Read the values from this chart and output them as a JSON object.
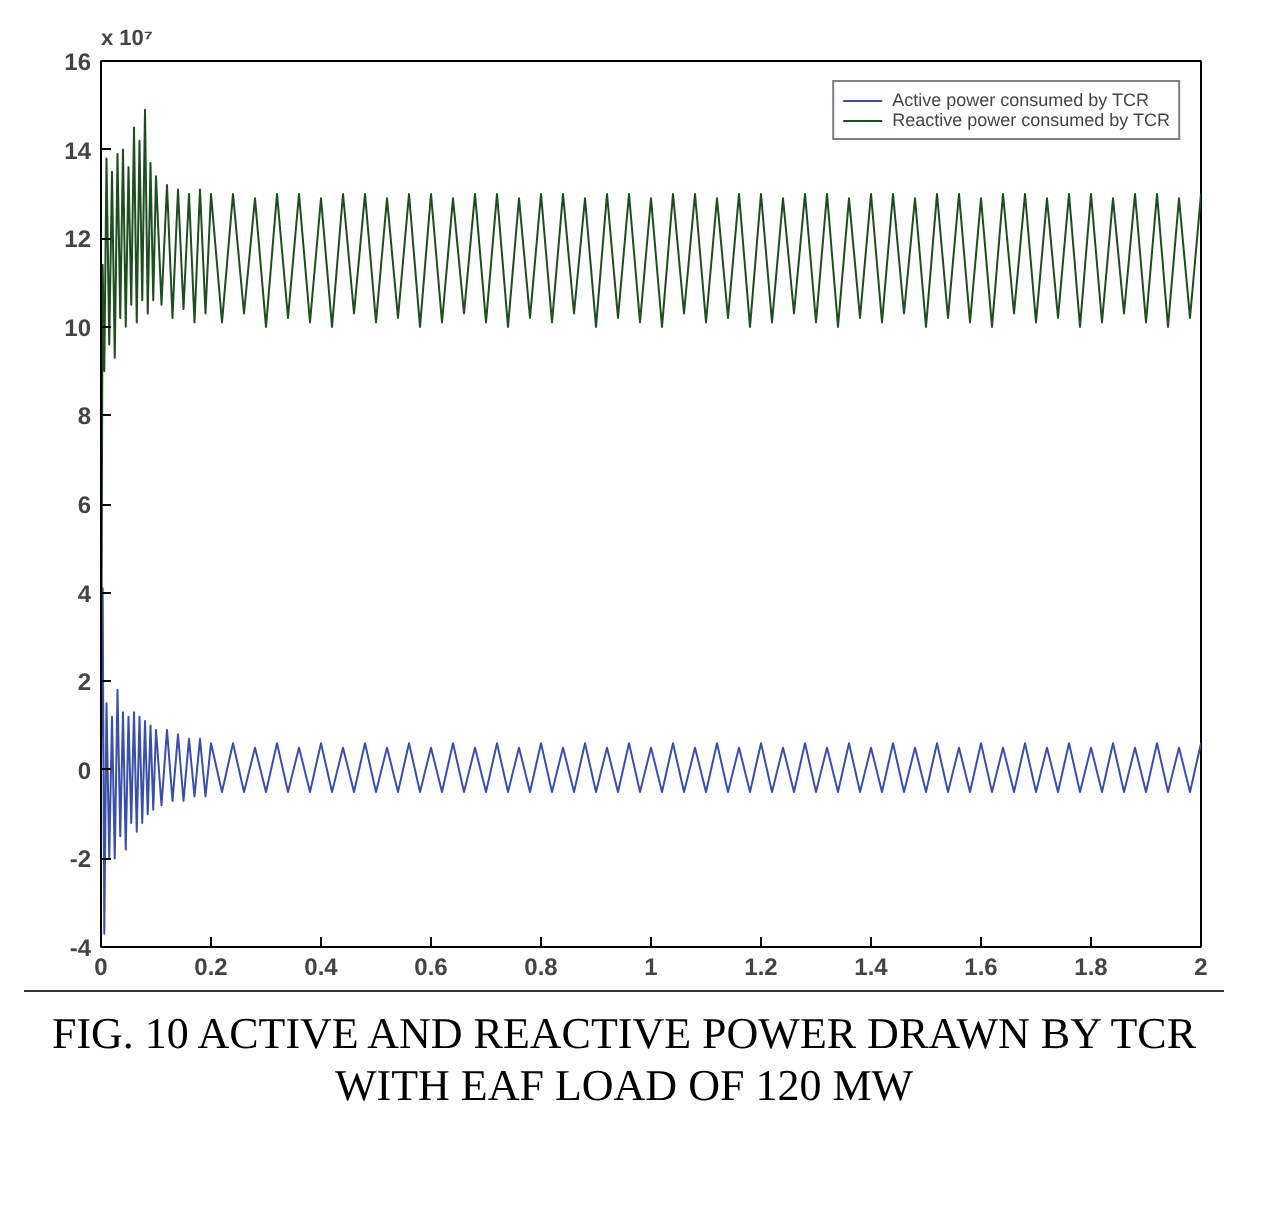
{
  "chart_data": {
    "type": "line",
    "x": [
      0,
      0.003,
      0.006,
      0.01,
      0.015,
      0.02,
      0.025,
      0.03,
      0.035,
      0.04,
      0.045,
      0.05,
      0.055,
      0.06,
      0.065,
      0.07,
      0.075,
      0.08,
      0.085,
      0.09,
      0.095,
      0.1,
      0.11,
      0.12,
      0.13,
      0.14,
      0.15,
      0.16,
      0.17,
      0.18,
      0.19,
      0.2,
      0.22,
      0.24,
      0.26,
      0.28,
      0.3,
      0.32,
      0.34,
      0.36,
      0.38,
      0.4,
      0.42,
      0.44,
      0.46,
      0.48,
      0.5,
      0.52,
      0.54,
      0.56,
      0.58,
      0.6,
      0.62,
      0.64,
      0.66,
      0.68,
      0.7,
      0.72,
      0.74,
      0.76,
      0.78,
      0.8,
      0.82,
      0.84,
      0.86,
      0.88,
      0.9,
      0.92,
      0.94,
      0.96,
      0.98,
      1.0,
      1.02,
      1.04,
      1.06,
      1.08,
      1.1,
      1.12,
      1.14,
      1.16,
      1.18,
      1.2,
      1.22,
      1.24,
      1.26,
      1.28,
      1.3,
      1.32,
      1.34,
      1.36,
      1.38,
      1.4,
      1.42,
      1.44,
      1.46,
      1.48,
      1.5,
      1.52,
      1.54,
      1.56,
      1.58,
      1.6,
      1.62,
      1.64,
      1.66,
      1.68,
      1.7,
      1.72,
      1.74,
      1.76,
      1.78,
      1.8,
      1.82,
      1.84,
      1.86,
      1.88,
      1.9,
      1.92,
      1.94,
      1.96,
      1.98,
      2.0
    ],
    "series": [
      {
        "name": "Active power consumed by TCR",
        "color": "#3a4fa8",
        "values": [
          0,
          4.1,
          -3.7,
          1.5,
          -2.0,
          1.2,
          -2.0,
          1.8,
          -1.5,
          1.3,
          -1.8,
          1.2,
          -1.2,
          1.3,
          -1.4,
          1.2,
          -1.2,
          1.1,
          -1.0,
          1.0,
          -0.9,
          0.9,
          -0.8,
          0.9,
          -0.7,
          0.8,
          -0.7,
          0.7,
          -0.6,
          0.7,
          -0.6,
          0.6,
          -0.5,
          0.6,
          -0.5,
          0.5,
          -0.5,
          0.6,
          -0.5,
          0.5,
          -0.5,
          0.6,
          -0.5,
          0.5,
          -0.5,
          0.6,
          -0.5,
          0.5,
          -0.5,
          0.6,
          -0.5,
          0.5,
          -0.5,
          0.6,
          -0.5,
          0.5,
          -0.5,
          0.6,
          -0.5,
          0.5,
          -0.5,
          0.6,
          -0.5,
          0.5,
          -0.5,
          0.6,
          -0.5,
          0.5,
          -0.5,
          0.6,
          -0.5,
          0.5,
          -0.5,
          0.6,
          -0.5,
          0.5,
          -0.5,
          0.6,
          -0.5,
          0.5,
          -0.5,
          0.6,
          -0.5,
          0.5,
          -0.5,
          0.6,
          -0.5,
          0.5,
          -0.5,
          0.6,
          -0.5,
          0.5,
          -0.5,
          0.6,
          -0.5,
          0.5,
          -0.5,
          0.6,
          -0.5,
          0.5,
          -0.5,
          0.6,
          -0.5,
          0.5,
          -0.5,
          0.6,
          -0.5,
          0.5,
          -0.5,
          0.6,
          -0.5,
          0.5,
          -0.5,
          0.6,
          -0.5,
          0.5,
          -0.5,
          0.6,
          -0.5,
          0.5,
          -0.5,
          0.6
        ]
      },
      {
        "name": "Reactive power consumed by TCR",
        "color": "#1e4d1e",
        "values": [
          0,
          11.4,
          9.0,
          13.8,
          9.6,
          13.5,
          9.3,
          13.9,
          10.2,
          14.0,
          10.0,
          13.6,
          10.5,
          14.5,
          10.1,
          14.2,
          10.6,
          14.9,
          10.3,
          13.7,
          10.6,
          13.4,
          10.5,
          13.2,
          10.2,
          13.1,
          10.4,
          13.0,
          10.1,
          13.1,
          10.3,
          13.0,
          10.1,
          13.0,
          10.3,
          12.9,
          10.0,
          13.0,
          10.2,
          13.0,
          10.1,
          12.9,
          10.0,
          13.0,
          10.3,
          13.0,
          10.1,
          12.9,
          10.2,
          13.0,
          10.0,
          13.0,
          10.1,
          12.9,
          10.3,
          13.0,
          10.1,
          13.0,
          10.0,
          12.9,
          10.2,
          13.0,
          10.1,
          13.0,
          10.3,
          12.9,
          10.0,
          13.0,
          10.2,
          13.0,
          10.1,
          12.9,
          10.0,
          13.0,
          10.3,
          13.0,
          10.1,
          12.9,
          10.2,
          13.0,
          10.0,
          13.0,
          10.1,
          12.9,
          10.3,
          13.0,
          10.1,
          13.0,
          10.0,
          12.9,
          10.2,
          13.0,
          10.1,
          13.0,
          10.3,
          12.9,
          10.0,
          13.0,
          10.2,
          13.0,
          10.1,
          12.9,
          10.0,
          13.0,
          10.3,
          13.0,
          10.1,
          12.9,
          10.2,
          13.0,
          10.0,
          13.0,
          10.1,
          12.9,
          10.3,
          13.0,
          10.1,
          13.0,
          10.0,
          12.9,
          10.2,
          13.0
        ]
      }
    ],
    "xlim": [
      0,
      2
    ],
    "ylim": [
      -4,
      16
    ],
    "xticks": [
      0,
      0.2,
      0.4,
      0.6,
      0.8,
      1,
      1.2,
      1.4,
      1.6,
      1.8,
      2
    ],
    "yticks": [
      -4,
      -2,
      0,
      2,
      4,
      6,
      8,
      10,
      12,
      14,
      16
    ],
    "grid": false,
    "legend": "top right",
    "annotations": [
      "x 10⁷",
      "FIG. 10    ACTIVE AND REACTIVE POWER DRAWN BY TCR WITH EAF LOAD OF 120 MW"
    ]
  }
}
